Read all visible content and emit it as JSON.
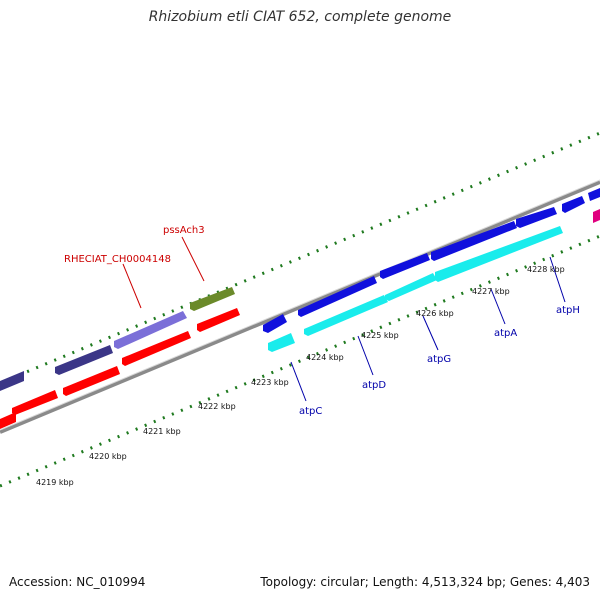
{
  "title": "Rhizobium etli CIAT 652, complete genome",
  "footer": {
    "accession": "Accession: NC_010994",
    "stats": "Topology: circular; Length: 4,513,324 bp; Genes: 4,403"
  },
  "colors": {
    "backbone": "#8a8a8a",
    "tick": "#1f7a1f",
    "label_red": "#cc0000",
    "label_blue": "#0000aa",
    "gene_red": "#ff0000",
    "gene_blue": "#1010dd",
    "gene_cyan": "#19ecec",
    "gene_navy": "#3b3687",
    "gene_lavender": "#7b6fd8",
    "gene_olive": "#6b8a2a",
    "gene_pink": "#e0007f"
  },
  "scale_labels": [
    "4219 kbp",
    "4220 kbp",
    "4221 kbp",
    "4222 kbp",
    "4223 kbp",
    "4224 kbp",
    "4225 kbp",
    "4226 kbp",
    "4227 kbp",
    "4228 kbp"
  ],
  "gene_labels": [
    {
      "text": "pssAch3",
      "color": "red"
    },
    {
      "text": "RHECIAT_CH0004148",
      "color": "red"
    },
    {
      "text": "atpC",
      "color": "blue"
    },
    {
      "text": "atpD",
      "color": "blue"
    },
    {
      "text": "atpG",
      "color": "blue"
    },
    {
      "text": "atpA",
      "color": "blue"
    },
    {
      "text": "atpH",
      "color": "blue"
    }
  ]
}
